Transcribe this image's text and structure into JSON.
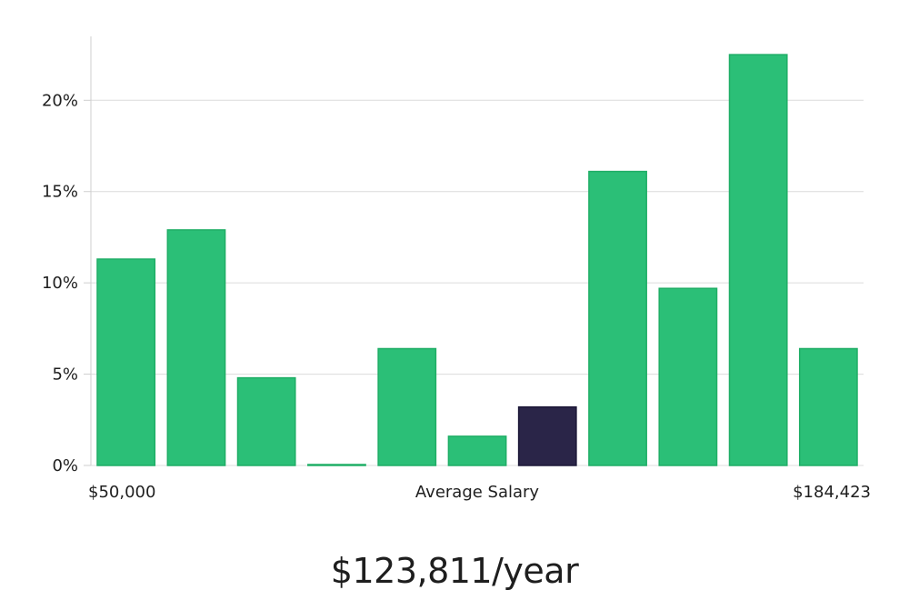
{
  "chart_data": {
    "type": "bar",
    "title": "",
    "xlabel": "Average Salary",
    "ylabel": "",
    "ylim": [
      0,
      23.5
    ],
    "y_ticks": [
      0,
      5,
      10,
      15,
      20
    ],
    "y_tick_suffix": "%",
    "x_min_label": "$50,000",
    "x_max_label": "$184,423",
    "values": [
      11.3,
      12.9,
      4.8,
      0.05,
      6.4,
      1.6,
      3.2,
      16.1,
      9.7,
      22.5,
      6.4
    ],
    "highlight_index": 6,
    "colors": {
      "bar": "#2bbf77",
      "bar_stroke": "#1fae66",
      "highlight": "#2a2548",
      "grid": "#dcdcdc",
      "axis": "#cfcfcf"
    }
  },
  "salary": {
    "display": "$123,811/year"
  }
}
